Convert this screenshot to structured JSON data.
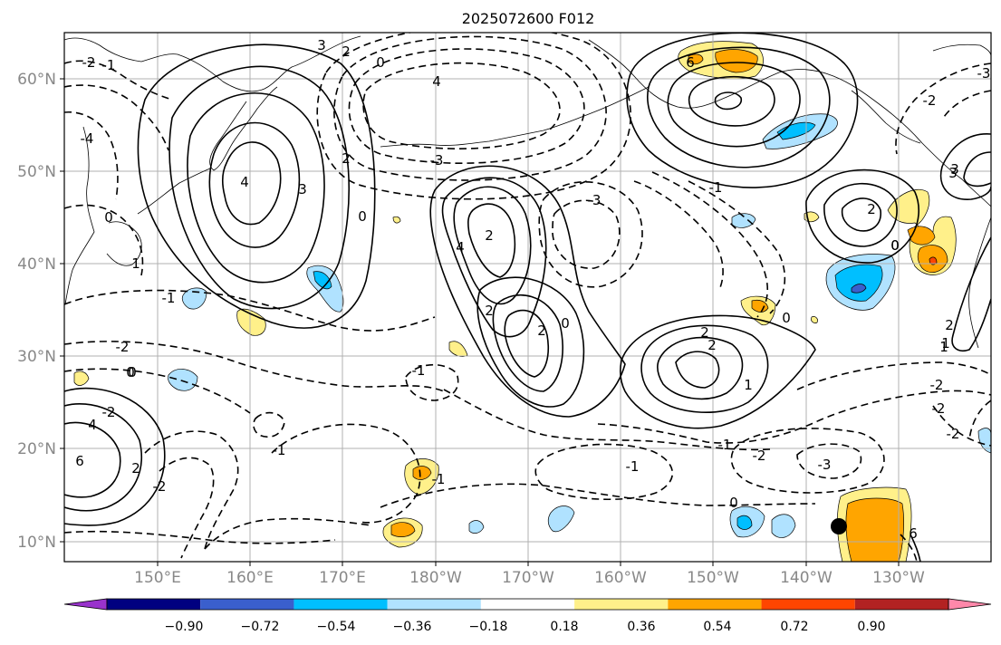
{
  "title": "2025072600 F012",
  "map": {
    "lat_labels": [
      "60°N",
      "50°N",
      "40°N",
      "30°N",
      "20°N",
      "10°N"
    ],
    "lon_labels": [
      "150°E",
      "160°E",
      "170°E",
      "180°W",
      "170°W",
      "160°W",
      "150°W",
      "140°W",
      "130°W"
    ],
    "contour_labels": [
      "3",
      "2",
      "0",
      "4",
      "-3",
      "-4",
      "2",
      "3",
      "4",
      "0",
      "-1",
      "-2",
      "0",
      "2",
      "4",
      "6",
      "-3",
      "2",
      "2",
      "0",
      "-2",
      "-1",
      "1",
      "-1",
      "-2",
      "0",
      "2",
      "1",
      "-1",
      "-2",
      "-3",
      "6",
      "4",
      "2",
      "-2",
      "3",
      "2",
      "0",
      "-3",
      "-1",
      "1",
      "2",
      "0",
      "-1",
      "0",
      "-2",
      "-1",
      "-2",
      "0",
      "0",
      "-2",
      "-1",
      "6",
      "2",
      "1",
      "3",
      "-2"
    ],
    "marker": "filled-circle",
    "line_color": "#000000",
    "coast_color": "#000000",
    "grid_color": "#b0b0b0"
  },
  "colorbar": {
    "ticks": [
      "−0.90",
      "−0.72",
      "−0.54",
      "−0.36",
      "−0.18",
      "0.18",
      "0.36",
      "0.54",
      "0.72",
      "0.90"
    ],
    "colors": [
      "#9933cc",
      "#000080",
      "#3a5fcd",
      "#00bfff",
      "#b0e2ff",
      "#ffffff",
      "#fff08a",
      "#ffa500",
      "#ff4500",
      "#b22222",
      "#ff88aa"
    ]
  }
}
